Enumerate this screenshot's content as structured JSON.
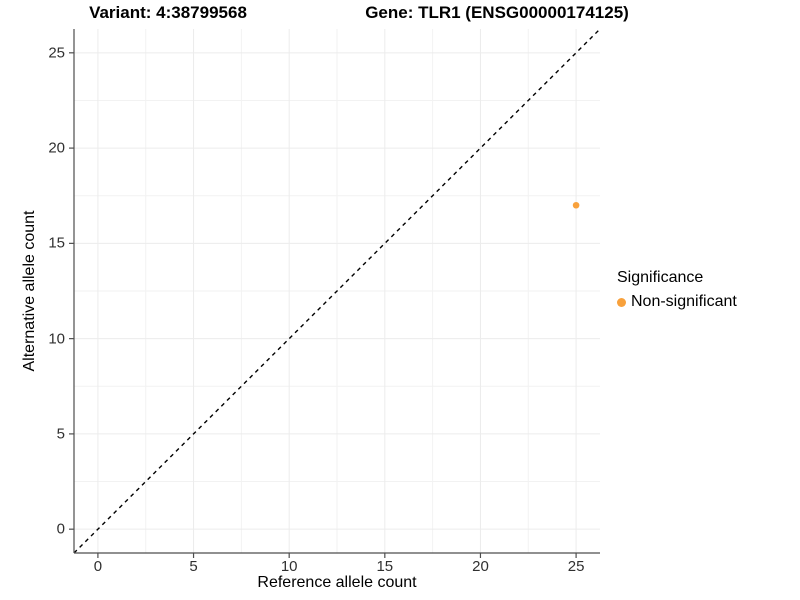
{
  "titles": {
    "variant": "Variant: 4:38799568",
    "gene": "Gene: TLR1 (ENSG00000174125)"
  },
  "legend": {
    "title": "Significance",
    "items": [
      {
        "label": "Non-significant",
        "color": "#F8A13C",
        "marker": "circle-icon"
      }
    ]
  },
  "colors": {
    "point_orange": "#F8A13C",
    "axis_line": "#4d4d4d",
    "tick_text": "#303030",
    "grid_major": "#ececec",
    "grid_minor": "#f2f2f2",
    "reference_line": "#000000",
    "background": "#ffffff"
  },
  "chart_data": {
    "type": "scatter",
    "title": "Variant: 4:38799568 — Gene: TLR1 (ENSG00000174125)",
    "xlabel": "Reference allele count",
    "ylabel": "Alternative allele count",
    "xlim": [
      -1.25,
      26.25
    ],
    "ylim": [
      -1.25,
      26.25
    ],
    "x_ticks": [
      0,
      5,
      10,
      15,
      20,
      25
    ],
    "y_ticks": [
      0,
      5,
      10,
      15,
      20,
      25
    ],
    "minor_grid_step": 2.5,
    "grid": true,
    "legend_position": "right",
    "series": [
      {
        "name": "Non-significant",
        "color": "#F8A13C",
        "points": [
          {
            "x": 25,
            "y": 17
          }
        ]
      }
    ],
    "reference_line": {
      "kind": "identity",
      "style": "dashed",
      "color": "#000000"
    }
  }
}
